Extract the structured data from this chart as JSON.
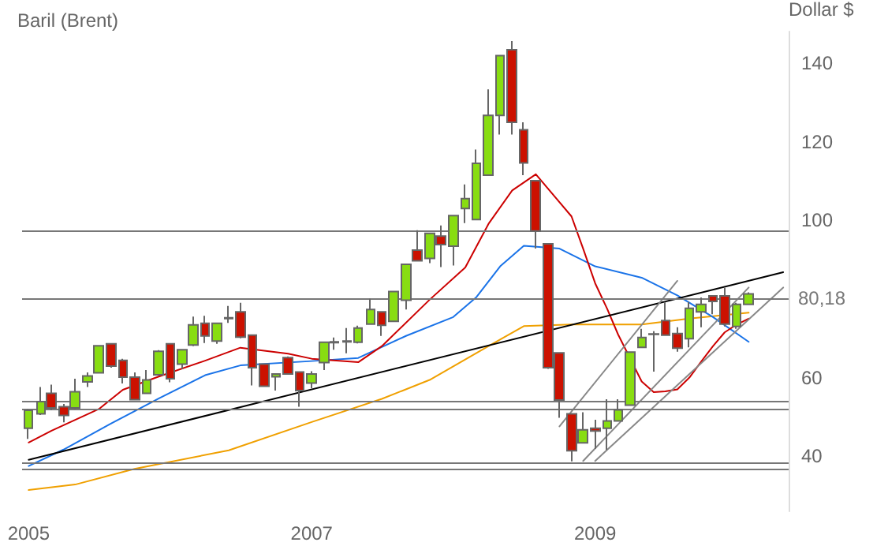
{
  "chart_data": {
    "type": "candlestick",
    "title": "Baril (Brent)",
    "ylabel": "Dollar $",
    "x": [
      "2005-01",
      "2005-02",
      "2005-03",
      "2005-04",
      "2005-05",
      "2005-06",
      "2005-07",
      "2005-08",
      "2005-09",
      "2005-10",
      "2005-11",
      "2005-12",
      "2006-01",
      "2006-02",
      "2006-03",
      "2006-04",
      "2006-05",
      "2006-06",
      "2006-07",
      "2006-08",
      "2006-09",
      "2006-10",
      "2006-11",
      "2006-12",
      "2007-01",
      "2007-02",
      "2007-03",
      "2007-04",
      "2007-05",
      "2007-06",
      "2007-07",
      "2007-08",
      "2007-09",
      "2007-10",
      "2007-11",
      "2007-12",
      "2008-01",
      "2008-02",
      "2008-03",
      "2008-04",
      "2008-05",
      "2008-06",
      "2008-07",
      "2008-08",
      "2008-09",
      "2008-10",
      "2008-11",
      "2008-12",
      "2009-01",
      "2009-02",
      "2009-03",
      "2009-04",
      "2009-05",
      "2009-06",
      "2009-07",
      "2009-08",
      "2009-09",
      "2009-10",
      "2009-11",
      "2009-12",
      "2010-01",
      "2010-02"
    ],
    "ohlc": [
      [
        47.1,
        52.0,
        44.4,
        51.7
      ],
      [
        50.8,
        57.6,
        50.5,
        53.9
      ],
      [
        56.0,
        58.2,
        51.7,
        52.3
      ],
      [
        52.6,
        53.3,
        48.6,
        50.4
      ],
      [
        52.3,
        59.7,
        52.0,
        56.4
      ],
      [
        58.9,
        61.3,
        57.6,
        60.4
      ],
      [
        61.2,
        68.3,
        61.0,
        68.1
      ],
      [
        68.6,
        68.8,
        62.5,
        62.9
      ],
      [
        64.4,
        64.8,
        58.5,
        60.1
      ],
      [
        60.1,
        61.3,
        54.2,
        54.4
      ],
      [
        56.0,
        61.9,
        55.8,
        59.4
      ],
      [
        60.7,
        67.0,
        60.5,
        66.7
      ],
      [
        68.6,
        68.8,
        58.8,
        59.7
      ],
      [
        63.4,
        67.3,
        62.2,
        67.1
      ],
      [
        68.3,
        75.5,
        68.0,
        73.4
      ],
      [
        73.8,
        75.7,
        68.8,
        70.6
      ],
      [
        69.3,
        74.0,
        68.6,
        73.8
      ],
      [
        75.0,
        78.2,
        73.9,
        75.2
      ],
      [
        76.7,
        79.0,
        70.0,
        70.3
      ],
      [
        70.8,
        71.0,
        58.0,
        62.5
      ],
      [
        63.4,
        63.6,
        57.6,
        57.8
      ],
      [
        60.2,
        61.0,
        56.7,
        60.9
      ],
      [
        65.1,
        65.4,
        60.7,
        60.9
      ],
      [
        61.4,
        61.6,
        52.6,
        56.7
      ],
      [
        58.6,
        61.6,
        57.3,
        60.9
      ],
      [
        63.8,
        69.2,
        61.9,
        69.0
      ],
      [
        68.9,
        70.2,
        67.1,
        69.1
      ],
      [
        69.1,
        72.6,
        66.2,
        69.3
      ],
      [
        69.0,
        73.2,
        68.7,
        72.6
      ],
      [
        73.6,
        80.1,
        73.4,
        77.3
      ],
      [
        76.7,
        76.9,
        70.6,
        73.3
      ],
      [
        74.3,
        82.1,
        74.1,
        81.9
      ],
      [
        79.7,
        89.0,
        77.3,
        88.8
      ],
      [
        92.4,
        97.5,
        89.5,
        89.7
      ],
      [
        90.3,
        96.9,
        89.1,
        96.7
      ],
      [
        96.0,
        98.7,
        88.1,
        93.8
      ],
      [
        93.4,
        101.4,
        88.5,
        101.2
      ],
      [
        103.0,
        109.1,
        99.3,
        105.5
      ],
      [
        100.2,
        118.0,
        100.0,
        114.5
      ],
      [
        111.5,
        133.3,
        111.3,
        126.7
      ],
      [
        126.7,
        142.1,
        121.8,
        141.9
      ],
      [
        143.4,
        145.6,
        121.8,
        124.9
      ],
      [
        123.0,
        124.9,
        111.5,
        114.6
      ],
      [
        110.1,
        110.3,
        92.8,
        97.3
      ],
      [
        94.0,
        94.2,
        62.2,
        62.5
      ],
      [
        66.3,
        66.5,
        49.8,
        54.3
      ],
      [
        50.8,
        51.0,
        38.7,
        41.4
      ],
      [
        43.4,
        51.2,
        43.2,
        46.7
      ],
      [
        47.1,
        49.3,
        41.9,
        46.4
      ],
      [
        47.1,
        54.5,
        41.6,
        49.0
      ],
      [
        49.0,
        54.5,
        48.8,
        51.8
      ],
      [
        53.0,
        66.7,
        52.8,
        66.5
      ],
      [
        67.7,
        72.4,
        67.5,
        70.2
      ],
      [
        71.0,
        71.8,
        61.5,
        71.1
      ],
      [
        74.5,
        79.2,
        70.6,
        70.8
      ],
      [
        71.2,
        72.8,
        66.6,
        67.5
      ],
      [
        69.9,
        79.2,
        67.7,
        77.6
      ],
      [
        76.7,
        80.4,
        72.8,
        78.6
      ],
      [
        80.8,
        81.0,
        76.1,
        79.4
      ],
      [
        80.8,
        82.9,
        73.0,
        73.6
      ],
      [
        73.0,
        79.0,
        72.4,
        78.6
      ],
      [
        78.6,
        81.7,
        78.4,
        81.3
      ]
    ],
    "colors": [
      "#88dd11",
      "#88dd11",
      "#cc1100",
      "#cc1100",
      "#88dd11",
      "#88dd11",
      "#88dd11",
      "#cc1100",
      "#cc1100",
      "#cc1100",
      "#88dd11",
      "#88dd11",
      "#cc1100",
      "#88dd11",
      "#88dd11",
      "#cc1100",
      "#88dd11",
      "#88dd11",
      "#cc1100",
      "#cc1100",
      "#cc1100",
      "#88dd11",
      "#cc1100",
      "#cc1100",
      "#88dd11",
      "#88dd11",
      "#88dd11",
      "#88dd11",
      "#88dd11",
      "#88dd11",
      "#cc1100",
      "#88dd11",
      "#88dd11",
      "#cc1100",
      "#88dd11",
      "#cc1100",
      "#88dd11",
      "#88dd11",
      "#88dd11",
      "#88dd11",
      "#88dd11",
      "#cc1100",
      "#cc1100",
      "#cc1100",
      "#cc1100",
      "#cc1100",
      "#cc1100",
      "#88dd11",
      "#cc1100",
      "#88dd11",
      "#88dd11",
      "#88dd11",
      "#88dd11",
      "#88dd11",
      "#cc1100",
      "#cc1100",
      "#88dd11",
      "#88dd11",
      "#cc1100",
      "#cc1100",
      "#88dd11",
      "#88dd11"
    ],
    "series": [
      {
        "type": "line",
        "color": "#f0a000",
        "x": [
          "2005-01",
          "2005-05",
          "2005-10",
          "2006-06",
          "2007-01",
          "2007-07",
          "2007-11",
          "2008-04",
          "2008-07",
          "2008-11",
          "2009-05",
          "2009-09",
          "2010-02"
        ],
        "values": [
          31.4,
          32.8,
          36.8,
          41.5,
          48.7,
          54.6,
          59.4,
          68,
          73.1,
          73.5,
          73.5,
          75,
          76.5
        ]
      },
      {
        "type": "line",
        "color": "#1a73e8",
        "x": [
          "2005-01",
          "2005-04",
          "2005-08",
          "2005-12",
          "2006-04",
          "2006-07",
          "2007-01",
          "2007-05",
          "2007-09",
          "2008-01",
          "2008-03",
          "2008-05",
          "2008-07",
          "2008-10",
          "2009-01",
          "2009-05",
          "2009-08",
          "2009-11",
          "2010-02"
        ],
        "values": [
          37.5,
          41.7,
          48.3,
          54.6,
          60.6,
          63.1,
          64.2,
          65,
          70.6,
          75.4,
          80.5,
          88.3,
          93.5,
          92.8,
          88.3,
          85.4,
          80.9,
          75.4,
          69.1
        ]
      },
      {
        "type": "line",
        "color": "#cc0000",
        "x": [
          "2005-01",
          "2005-03",
          "2005-07",
          "2005-09",
          "2005-12",
          "2006-04",
          "2006-07",
          "2006-11",
          "2007-01",
          "2007-05",
          "2007-07",
          "2007-11",
          "2008-02",
          "2008-04",
          "2008-06",
          "2008-08",
          "2008-11",
          "2008-12",
          "2009-01",
          "2009-02",
          "2009-03",
          "2009-05",
          "2009-06",
          "2009-07",
          "2009-08",
          "2009-09",
          "2009-10",
          "2009-11",
          "2009-12",
          "2010-01",
          "2010-02"
        ],
        "values": [
          43.5,
          46.5,
          52,
          56.9,
          60.2,
          64.3,
          67.6,
          66.1,
          64.8,
          63.9,
          68,
          79.8,
          88,
          99.1,
          107.6,
          111.7,
          101,
          92.8,
          84,
          77.5,
          71,
          59,
          56.3,
          56.5,
          57,
          60,
          64,
          68,
          71.5,
          73.5,
          75
        ]
      },
      {
        "type": "line",
        "color": "#000000",
        "x": [
          "2005-01",
          "2010-05"
        ],
        "values": [
          39.1,
          86.8
        ]
      },
      {
        "type": "line",
        "color": "#888888",
        "x": [
          "2008-10",
          "2009-08"
        ],
        "values": [
          47.6,
          84.6
        ]
      },
      {
        "type": "line",
        "color": "#888888",
        "x": [
          "2008-12",
          "2010-02"
        ],
        "values": [
          38.8,
          82.9
        ]
      },
      {
        "type": "line",
        "color": "#888888",
        "x": [
          "2009-01",
          "2010-05"
        ],
        "values": [
          38.8,
          82.9
        ]
      }
    ],
    "ref_lines": [
      {
        "axis": "y",
        "value": 97.5,
        "color": "#777777"
      },
      {
        "axis": "y",
        "value": 80.18,
        "label": "80,18",
        "color": "#777777"
      },
      {
        "axis": "y",
        "value": 54.1,
        "color": "#777777"
      },
      {
        "axis": "y",
        "value": 51.9,
        "color": "#777777"
      },
      {
        "axis": "y",
        "value": 38.5,
        "color": "#777777"
      },
      {
        "axis": "y",
        "value": 36.8,
        "color": "#777777"
      }
    ],
    "xlim": [
      "2004-12-15",
      "2010-05-15"
    ],
    "xticks": [
      {
        "value": "2005-01",
        "label": "2005"
      },
      {
        "value": "2007-01",
        "label": "2007"
      },
      {
        "value": "2009-01",
        "label": "2009"
      }
    ],
    "ylim": [
      26,
      148
    ],
    "yticks": [
      40,
      60,
      100,
      120,
      140
    ]
  }
}
